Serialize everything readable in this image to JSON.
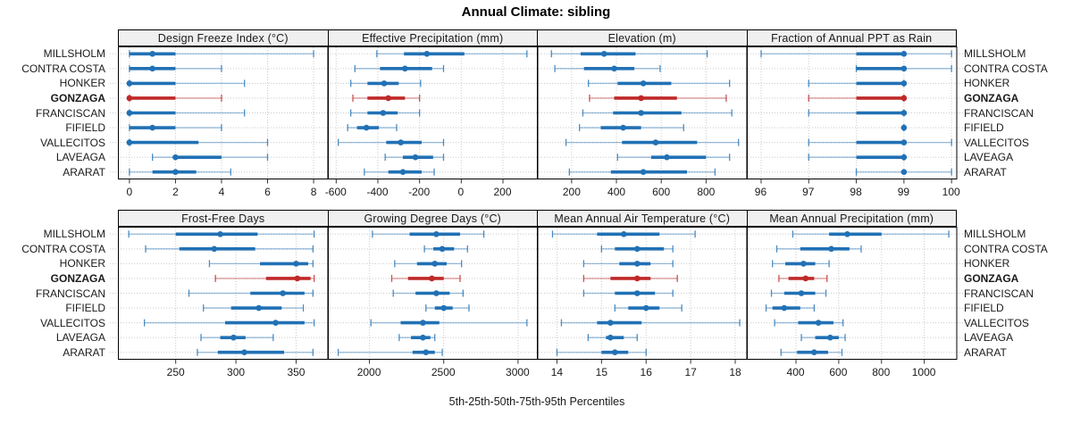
{
  "colors": {
    "normal": "#2171B5",
    "highlight": "#C02828",
    "grid": "#CBCBCB",
    "border": "#000000",
    "tick": "#333333",
    "panel_header_bg": "#F0F0F0",
    "text": "#1A1A1A"
  },
  "chart_data": {
    "type": "scatter",
    "variant": "dot-and-whisker percentile trellis",
    "title": "Annual Climate: sibling",
    "xlabel": "5th-25th-50th-75th-95th Percentiles",
    "percentile_labels": [
      "5th",
      "25th",
      "50th",
      "75th",
      "95th"
    ],
    "sites": [
      "MILLSHOLM",
      "CONTRA COSTA",
      "HONKER",
      "GONZAGA",
      "FRANCISCAN",
      "FIFIELD",
      "VALLECITOS",
      "LAVEAGA",
      "ARARAT"
    ],
    "highlight_site": "GONZAGA",
    "legend_position": "none",
    "grid": "dotted",
    "panels": [
      {
        "title": "Design Freeze Index (°C)",
        "ticks": [
          0,
          2,
          4,
          6,
          8
        ],
        "xlim": [
          -0.5,
          8.6
        ],
        "values": [
          [
            0,
            0,
            1,
            2,
            8
          ],
          [
            0,
            0,
            1,
            2,
            4
          ],
          [
            0,
            0,
            0,
            2,
            5
          ],
          [
            0,
            0,
            0,
            2,
            4
          ],
          [
            0,
            0,
            0,
            2,
            5
          ],
          [
            0,
            0,
            1,
            2,
            4
          ],
          [
            0,
            0,
            0,
            3,
            6
          ],
          [
            1,
            2,
            2,
            4,
            6
          ],
          [
            0,
            1,
            2,
            2.9,
            4.4
          ]
        ]
      },
      {
        "title": "Effective Precipitation (mm)",
        "ticks": [
          -600,
          -400,
          -200,
          0,
          200
        ],
        "xlim": [
          -640,
          365
        ],
        "values": [
          [
            -405,
            -275,
            -165,
            15,
            315
          ],
          [
            -510,
            -390,
            -270,
            -140,
            -85
          ],
          [
            -530,
            -450,
            -370,
            -300,
            -195
          ],
          [
            -520,
            -450,
            -350,
            -270,
            -200
          ],
          [
            -530,
            -450,
            -375,
            -305,
            -200
          ],
          [
            -545,
            -500,
            -455,
            -395,
            -310
          ],
          [
            -590,
            -360,
            -290,
            -190,
            -85
          ],
          [
            -365,
            -280,
            -220,
            -135,
            -85
          ],
          [
            -465,
            -350,
            -280,
            -190,
            -130
          ]
        ]
      },
      {
        "title": "Elevation (m)",
        "ticks": [
          200,
          400,
          600,
          800
        ],
        "xlim": [
          45,
          980
        ],
        "values": [
          [
            110,
            240,
            345,
            485,
            805
          ],
          [
            125,
            255,
            390,
            480,
            595
          ],
          [
            275,
            405,
            520,
            645,
            905
          ],
          [
            280,
            390,
            510,
            670,
            890
          ],
          [
            250,
            385,
            510,
            690,
            915
          ],
          [
            235,
            330,
            430,
            510,
            700
          ],
          [
            175,
            425,
            575,
            760,
            945
          ],
          [
            405,
            555,
            625,
            800,
            905
          ],
          [
            190,
            375,
            520,
            715,
            840
          ]
        ]
      },
      {
        "title": "Fraction of Annual PPT as Rain",
        "ticks": [
          96,
          97,
          98,
          99,
          100
        ],
        "xlim": [
          95.7,
          100.1
        ],
        "values": [
          [
            96,
            98,
            99,
            99,
            100
          ],
          [
            98,
            98,
            99,
            99,
            100
          ],
          [
            97,
            98,
            99,
            99,
            99
          ],
          [
            97,
            98,
            99,
            99,
            99
          ],
          [
            97,
            98,
            99,
            99,
            99
          ],
          [
            99,
            99,
            99,
            99,
            99
          ],
          [
            97,
            98,
            99,
            99,
            100
          ],
          [
            97,
            98,
            99,
            99,
            99
          ],
          [
            98,
            99,
            99,
            99,
            100
          ]
        ]
      },
      {
        "title": "Frost-Free Days",
        "ticks": [
          250,
          300,
          350
        ],
        "xlim": [
          202,
          376
        ],
        "values": [
          [
            211,
            250,
            287,
            318,
            365
          ],
          [
            225,
            253,
            282,
            316,
            364
          ],
          [
            278,
            320,
            350,
            360,
            364
          ],
          [
            283,
            325,
            351,
            362,
            365
          ],
          [
            261,
            312,
            339,
            357,
            364
          ],
          [
            273,
            296,
            319,
            338,
            356
          ],
          [
            224,
            291,
            333,
            357,
            365
          ],
          [
            271,
            287,
            298,
            308,
            331
          ],
          [
            268,
            285,
            307,
            340,
            364
          ]
        ]
      },
      {
        "title": "Growing Degree Days (°C)",
        "ticks": [
          2000,
          2500,
          3000
        ],
        "xlim": [
          1720,
          3130
        ],
        "values": [
          [
            2020,
            2270,
            2450,
            2610,
            2770
          ],
          [
            2370,
            2430,
            2490,
            2570,
            2660
          ],
          [
            2170,
            2320,
            2440,
            2520,
            2620
          ],
          [
            2150,
            2260,
            2420,
            2500,
            2610
          ],
          [
            2160,
            2310,
            2450,
            2540,
            2630
          ],
          [
            2380,
            2440,
            2500,
            2560,
            2670
          ],
          [
            2010,
            2210,
            2360,
            2470,
            3060
          ],
          [
            2200,
            2280,
            2360,
            2410,
            2440
          ],
          [
            1790,
            2290,
            2380,
            2440,
            2490
          ]
        ]
      },
      {
        "title": "Mean Annual Air Temperature (°C)",
        "ticks": [
          14,
          15,
          16,
          17,
          18
        ],
        "xlim": [
          13.55,
          18.25
        ],
        "values": [
          [
            13.9,
            14.9,
            15.5,
            16.3,
            17.1
          ],
          [
            15.0,
            15.3,
            15.8,
            16.4,
            16.6
          ],
          [
            14.6,
            15.4,
            15.8,
            16.1,
            16.6
          ],
          [
            14.6,
            15.2,
            15.8,
            16.1,
            16.7
          ],
          [
            14.6,
            15.3,
            15.8,
            16.2,
            16.6
          ],
          [
            15.3,
            15.6,
            16.0,
            16.3,
            16.8
          ],
          [
            14.1,
            14.9,
            15.2,
            15.9,
            18.1
          ],
          [
            14.7,
            15.1,
            15.2,
            15.5,
            15.8
          ],
          [
            14.0,
            15.0,
            15.3,
            15.6,
            16.0
          ]
        ]
      },
      {
        "title": "Mean Annual Precipitation (mm)",
        "ticks": [
          400,
          600,
          800,
          1000
        ],
        "xlim": [
          170,
          1150
        ],
        "values": [
          [
            385,
            555,
            640,
            800,
            1115
          ],
          [
            310,
            420,
            565,
            650,
            705
          ],
          [
            290,
            350,
            435,
            490,
            555
          ],
          [
            320,
            365,
            445,
            485,
            545
          ],
          [
            285,
            345,
            425,
            490,
            540
          ],
          [
            260,
            290,
            345,
            420,
            485
          ],
          [
            300,
            410,
            505,
            575,
            620
          ],
          [
            425,
            490,
            560,
            600,
            630
          ],
          [
            330,
            405,
            485,
            550,
            615
          ]
        ]
      }
    ]
  }
}
